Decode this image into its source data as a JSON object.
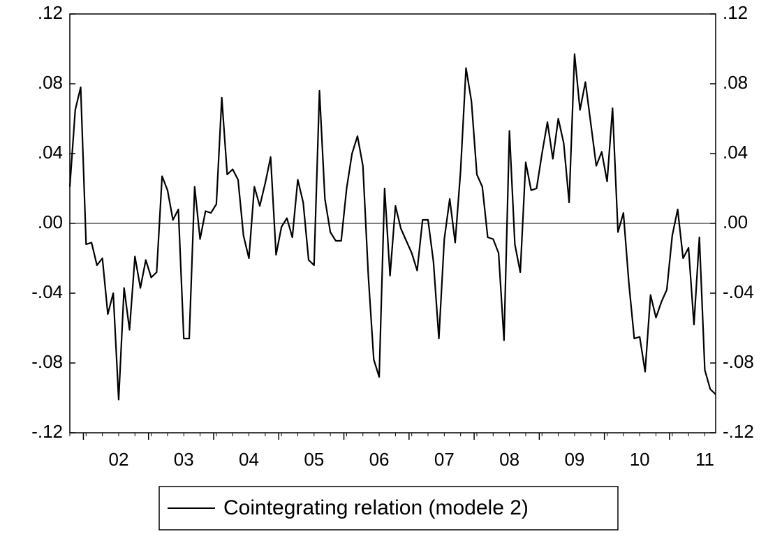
{
  "chart_data": {
    "type": "line",
    "categories": [
      null,
      null,
      null,
      null,
      null,
      null,
      null,
      null,
      null,
      "02",
      null,
      null,
      null,
      null,
      null,
      null,
      null,
      null,
      null,
      null,
      null,
      "03",
      null,
      null,
      null,
      null,
      null,
      null,
      null,
      null,
      null,
      null,
      null,
      "04",
      null,
      null,
      null,
      null,
      null,
      null,
      null,
      null,
      null,
      null,
      null,
      "05",
      null,
      null,
      null,
      null,
      null,
      null,
      null,
      null,
      null,
      null,
      null,
      "06",
      null,
      null,
      null,
      null,
      null,
      null,
      null,
      null,
      null,
      null,
      null,
      "07",
      null,
      null,
      null,
      null,
      null,
      null,
      null,
      null,
      null,
      null,
      null,
      "08",
      null,
      null,
      null,
      null,
      null,
      null,
      null,
      null,
      null,
      null,
      null,
      "09",
      null,
      null,
      null,
      null,
      null,
      null,
      null,
      null,
      null,
      null,
      null,
      "10",
      null,
      null,
      null,
      null,
      null,
      null,
      null,
      null,
      null,
      null,
      null,
      "11",
      null,
      null
    ],
    "series": [
      {
        "name": "Cointegrating relation (modele 2)",
        "color": "#000000",
        "values": [
          0.021,
          0.065,
          0.078,
          -0.012,
          -0.011,
          -0.024,
          -0.02,
          -0.052,
          -0.04,
          -0.101,
          -0.037,
          -0.061,
          -0.019,
          -0.037,
          -0.021,
          -0.031,
          -0.028,
          0.027,
          0.019,
          0.002,
          0.008,
          -0.066,
          -0.066,
          0.021,
          -0.009,
          0.007,
          0.006,
          0.011,
          0.072,
          0.028,
          0.031,
          0.025,
          -0.007,
          -0.02,
          0.021,
          0.01,
          0.023,
          0.038,
          -0.018,
          -0.002,
          0.003,
          -0.008,
          0.025,
          0.012,
          -0.021,
          -0.024,
          0.076,
          0.014,
          -0.005,
          -0.01,
          -0.01,
          0.02,
          0.04,
          0.05,
          0.033,
          -0.03,
          -0.078,
          -0.088,
          0.02,
          -0.03,
          0.01,
          -0.003,
          -0.01,
          -0.017,
          -0.027,
          0.002,
          0.002,
          -0.022,
          -0.066,
          -0.009,
          0.014,
          -0.011,
          0.03,
          0.089,
          0.07,
          0.028,
          0.021,
          -0.008,
          -0.009,
          -0.017,
          -0.067,
          0.053,
          -0.012,
          -0.028,
          0.035,
          0.019,
          0.02,
          0.04,
          0.058,
          0.037,
          0.06,
          0.046,
          0.012,
          0.097,
          0.065,
          0.081,
          0.057,
          0.033,
          0.041,
          0.024,
          0.066,
          -0.005,
          0.006,
          -0.034,
          -0.066,
          -0.065,
          -0.085,
          -0.041,
          -0.054,
          -0.045,
          -0.038,
          -0.007,
          0.008,
          -0.02,
          -0.014,
          -0.058,
          -0.008,
          -0.084,
          -0.095,
          -0.098
        ]
      }
    ],
    "ylim": [
      -0.12,
      0.12
    ],
    "yticks": [
      {
        "value": -0.12,
        "label": "-.12"
      },
      {
        "value": -0.08,
        "label": "-.08"
      },
      {
        "value": -0.04,
        "label": "-.04"
      },
      {
        "value": 0,
        "label": ".00"
      },
      {
        "value": 0.04,
        "label": ".04"
      },
      {
        "value": 0.08,
        "label": ".08"
      },
      {
        "value": 0.12,
        "label": ".12"
      }
    ],
    "zero_line": true,
    "right_axis_labels": true,
    "legend": "bottom"
  }
}
